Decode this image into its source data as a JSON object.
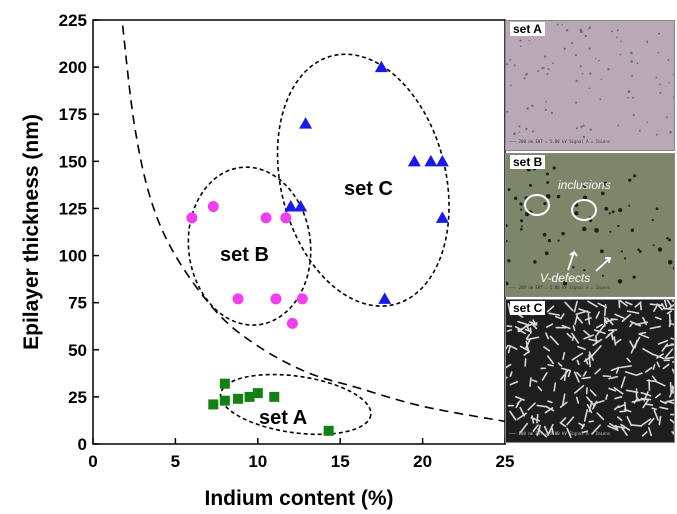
{
  "chart_data": {
    "type": "scatter",
    "xlabel": "Indium content (%)",
    "ylabel": "Epilayer thickness (nm)",
    "xlim": [
      0,
      25
    ],
    "ylim": [
      0,
      225
    ],
    "xticks": [
      "0",
      "5",
      "10",
      "15",
      "20",
      "25"
    ],
    "yticks": [
      "0",
      "25",
      "50",
      "75",
      "100",
      "125",
      "150",
      "175",
      "200",
      "225"
    ],
    "series": [
      {
        "name": "set A",
        "marker": "square",
        "color": "#138013",
        "points": [
          [
            7.3,
            21
          ],
          [
            8.0,
            32
          ],
          [
            8.0,
            23
          ],
          [
            8.8,
            24
          ],
          [
            9.5,
            25
          ],
          [
            10.0,
            27
          ],
          [
            11.0,
            25
          ],
          [
            14.3,
            7
          ]
        ]
      },
      {
        "name": "set B",
        "marker": "circle",
        "color": "#f03ef0",
        "points": [
          [
            6.0,
            120
          ],
          [
            7.3,
            126
          ],
          [
            8.8,
            77
          ],
          [
            10.5,
            120
          ],
          [
            11.1,
            77
          ],
          [
            11.7,
            120
          ],
          [
            12.1,
            64
          ],
          [
            12.7,
            77
          ]
        ]
      },
      {
        "name": "set C",
        "marker": "triangle",
        "color": "#1a1ae6",
        "points": [
          [
            12.0,
            126
          ],
          [
            12.6,
            126
          ],
          [
            12.9,
            170
          ],
          [
            17.5,
            200
          ],
          [
            17.7,
            77
          ],
          [
            19.5,
            150
          ],
          [
            20.5,
            150
          ],
          [
            21.2,
            150
          ],
          [
            21.2,
            120
          ]
        ]
      }
    ],
    "curve": {
      "style": "dashed",
      "points": [
        [
          1.8,
          222
        ],
        [
          2.5,
          170
        ],
        [
          3.5,
          130
        ],
        [
          5,
          100
        ],
        [
          7.5,
          70
        ],
        [
          10,
          52
        ],
        [
          13,
          38
        ],
        [
          16,
          30
        ],
        [
          20,
          20
        ],
        [
          25,
          12
        ]
      ]
    },
    "ellipses": [
      {
        "label": "set A",
        "cx": 12.3,
        "cy": 21,
        "rx": 4.6,
        "ry": 15,
        "angle_deg": 8
      },
      {
        "label": "set B",
        "cx": 9.5,
        "cy": 105,
        "rx": 3.7,
        "ry": 42,
        "angle_deg": -6
      },
      {
        "label": "set C",
        "cx": 16.4,
        "cy": 140,
        "rx": 5.0,
        "ry": 68,
        "angle_deg": -14
      }
    ],
    "grid": false,
    "legend": "none"
  },
  "insets": [
    {
      "label": "set A",
      "texture": "#b9a9b7"
    },
    {
      "label": "set B",
      "texture": "#7c876a",
      "annotations": [
        "inclusions",
        "V-defects"
      ]
    },
    {
      "label": "set C",
      "texture": "#1e1e1e"
    }
  ]
}
